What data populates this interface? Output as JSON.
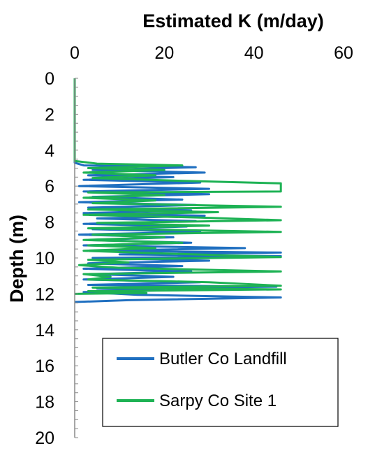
{
  "chart_data": {
    "type": "line",
    "title": "",
    "xlabel": "Estimated K (m/day)",
    "ylabel": "Depth (m)",
    "xlim": [
      0,
      60
    ],
    "ylim": [
      0,
      20
    ],
    "x_axis_position": "top",
    "y_axis_inverted": true,
    "x_ticks": [
      "0",
      "20",
      "40",
      "60"
    ],
    "y_ticks": [
      "0",
      "2",
      "4",
      "6",
      "8",
      "10",
      "12",
      "14",
      "16",
      "18",
      "20"
    ],
    "grid": false,
    "legend": {
      "position": "bottom-right",
      "boxed": true
    },
    "series": [
      {
        "name": "Butler Co Landfill",
        "color": "#1f6fc0",
        "points": [
          [
            0,
            0
          ],
          [
            0,
            4.7
          ],
          [
            2,
            4.85
          ],
          [
            27,
            4.95
          ],
          [
            4,
            5.1
          ],
          [
            29,
            5.25
          ],
          [
            3,
            5.4
          ],
          [
            22,
            5.5
          ],
          [
            2,
            5.65
          ],
          [
            28,
            5.8
          ],
          [
            1,
            6.0
          ],
          [
            30,
            6.15
          ],
          [
            2,
            6.3
          ],
          [
            30,
            6.45
          ],
          [
            4,
            6.6
          ],
          [
            24,
            6.75
          ],
          [
            1,
            6.9
          ],
          [
            27,
            7.05
          ],
          [
            3,
            7.2
          ],
          [
            26,
            7.35
          ],
          [
            2,
            7.5
          ],
          [
            29,
            7.65
          ],
          [
            5,
            7.8
          ],
          [
            27,
            7.95
          ],
          [
            2,
            8.1
          ],
          [
            25,
            8.25
          ],
          [
            4,
            8.4
          ],
          [
            28,
            8.55
          ],
          [
            1,
            8.7
          ],
          [
            22,
            8.85
          ],
          [
            3,
            9.0
          ],
          [
            26,
            9.15
          ],
          [
            2,
            9.3
          ],
          [
            38,
            9.45
          ],
          [
            5,
            9.6
          ],
          [
            46,
            9.7
          ],
          [
            10,
            9.8
          ],
          [
            46,
            9.9
          ],
          [
            4,
            10.0
          ],
          [
            30,
            10.15
          ],
          [
            3,
            10.3
          ],
          [
            24,
            10.45
          ],
          [
            2,
            10.6
          ],
          [
            26,
            10.75
          ],
          [
            4,
            10.9
          ],
          [
            22,
            11.05
          ],
          [
            2,
            11.2
          ],
          [
            28,
            11.35
          ],
          [
            3,
            11.5
          ],
          [
            45,
            11.6
          ],
          [
            5,
            11.7
          ],
          [
            20,
            11.8
          ],
          [
            2,
            11.9
          ],
          [
            14,
            12.05
          ],
          [
            46,
            12.2
          ],
          [
            12,
            12.35
          ],
          [
            0,
            12.45
          ]
        ]
      },
      {
        "name": "Sarpy Co Site 1",
        "color": "#1db254",
        "points": [
          [
            0,
            0
          ],
          [
            0,
            4.6
          ],
          [
            5,
            4.75
          ],
          [
            24,
            4.85
          ],
          [
            3,
            5.0
          ],
          [
            20,
            5.1
          ],
          [
            2,
            5.25
          ],
          [
            18,
            5.4
          ],
          [
            4,
            5.55
          ],
          [
            23,
            5.7
          ],
          [
            46,
            5.85
          ],
          [
            46,
            6.3
          ],
          [
            3,
            6.35
          ],
          [
            20,
            6.5
          ],
          [
            2,
            6.65
          ],
          [
            18,
            6.8
          ],
          [
            4,
            6.95
          ],
          [
            46,
            7.15
          ],
          [
            3,
            7.3
          ],
          [
            32,
            7.45
          ],
          [
            2,
            7.6
          ],
          [
            28,
            7.75
          ],
          [
            46,
            7.9
          ],
          [
            5,
            8.05
          ],
          [
            30,
            8.2
          ],
          [
            3,
            8.35
          ],
          [
            46,
            8.55
          ],
          [
            4,
            8.7
          ],
          [
            20,
            8.85
          ],
          [
            2,
            9.0
          ],
          [
            24,
            9.15
          ],
          [
            3,
            9.3
          ],
          [
            18,
            9.45
          ],
          [
            2,
            9.6
          ],
          [
            20,
            9.75
          ],
          [
            46,
            9.95
          ],
          [
            3,
            10.1
          ],
          [
            12,
            10.25
          ],
          [
            1,
            10.4
          ],
          [
            10,
            10.55
          ],
          [
            46,
            10.75
          ],
          [
            2,
            10.9
          ],
          [
            8,
            11.05
          ],
          [
            3,
            11.2
          ],
          [
            30,
            11.35
          ],
          [
            46,
            11.55
          ],
          [
            4,
            11.65
          ],
          [
            46,
            11.75
          ],
          [
            3,
            11.85
          ],
          [
            16,
            11.95
          ],
          [
            0,
            12.0
          ]
        ]
      }
    ]
  }
}
